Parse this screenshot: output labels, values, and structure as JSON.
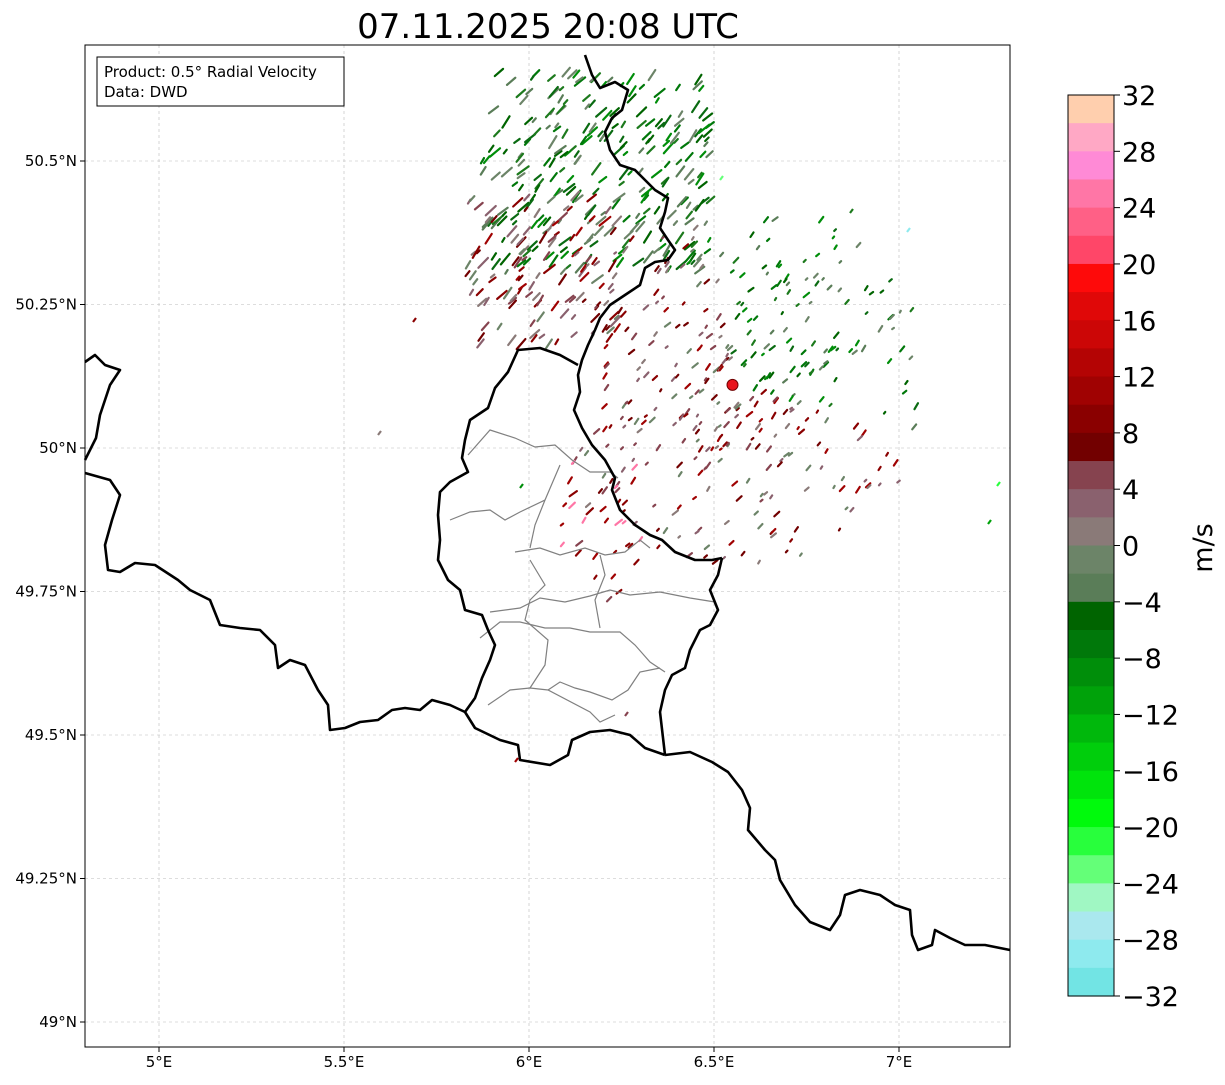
{
  "title": "07.11.2025 20:08 UTC",
  "info_box": {
    "product": "Product: 0.5° Radial Velocity",
    "data_source": "Data: DWD"
  },
  "map": {
    "lon_range": [
      4.8,
      7.3
    ],
    "lat_range": [
      48.95,
      50.7
    ],
    "lon_ticks": [
      {
        "value": 5.0,
        "label": "5°E"
      },
      {
        "value": 5.5,
        "label": "5.5°E"
      },
      {
        "value": 6.0,
        "label": "6°E"
      },
      {
        "value": 6.5,
        "label": "6.5°E"
      },
      {
        "value": 7.0,
        "label": "7°E"
      }
    ],
    "lat_ticks": [
      {
        "value": 50.5,
        "label": "50.5°N"
      },
      {
        "value": 50.25,
        "label": "50.25°N"
      },
      {
        "value": 50.0,
        "label": "50°N"
      },
      {
        "value": 49.75,
        "label": "49.75°N"
      },
      {
        "value": 49.5,
        "label": "49.5°N"
      },
      {
        "value": 49.25,
        "label": "49.25°N"
      },
      {
        "value": 49.0,
        "label": "49°N"
      }
    ],
    "radar_site": {
      "lon": 6.55,
      "lat": 50.11,
      "color": "#e8141c"
    }
  },
  "colorbar": {
    "unit": "m/s",
    "min": -32,
    "max": 32,
    "tick_values": [
      32,
      28,
      24,
      20,
      16,
      12,
      8,
      4,
      0,
      -4,
      -8,
      -12,
      -16,
      -20,
      -24,
      -28,
      -32
    ],
    "tick_labels": [
      "32",
      "28",
      "24",
      "20",
      "16",
      "12",
      "8",
      "4",
      "0",
      "−4",
      "−8",
      "−12",
      "−16",
      "−20",
      "−24",
      "−28",
      "−32"
    ],
    "colors_top_to_bottom": [
      "#ffcfae",
      "#ffa8c5",
      "#ff8ad6",
      "#ff76a6",
      "#ff6086",
      "#ff4668",
      "#fe0a0a",
      "#e00808",
      "#cc0606",
      "#b40404",
      "#a00202",
      "#8a0000",
      "#720000",
      "#86434f",
      "#8a616e",
      "#8a7a78",
      "#6c8468",
      "#5a7d58",
      "#006400",
      "#00780a",
      "#008e0a",
      "#00a20a",
      "#00b80c",
      "#00ce0c",
      "#00e40c",
      "#00fa0c",
      "#28ff3c",
      "#64ff78",
      "#a0f7c3",
      "#aae8ee",
      "#8eeaee",
      "#72e4e4"
    ]
  }
}
